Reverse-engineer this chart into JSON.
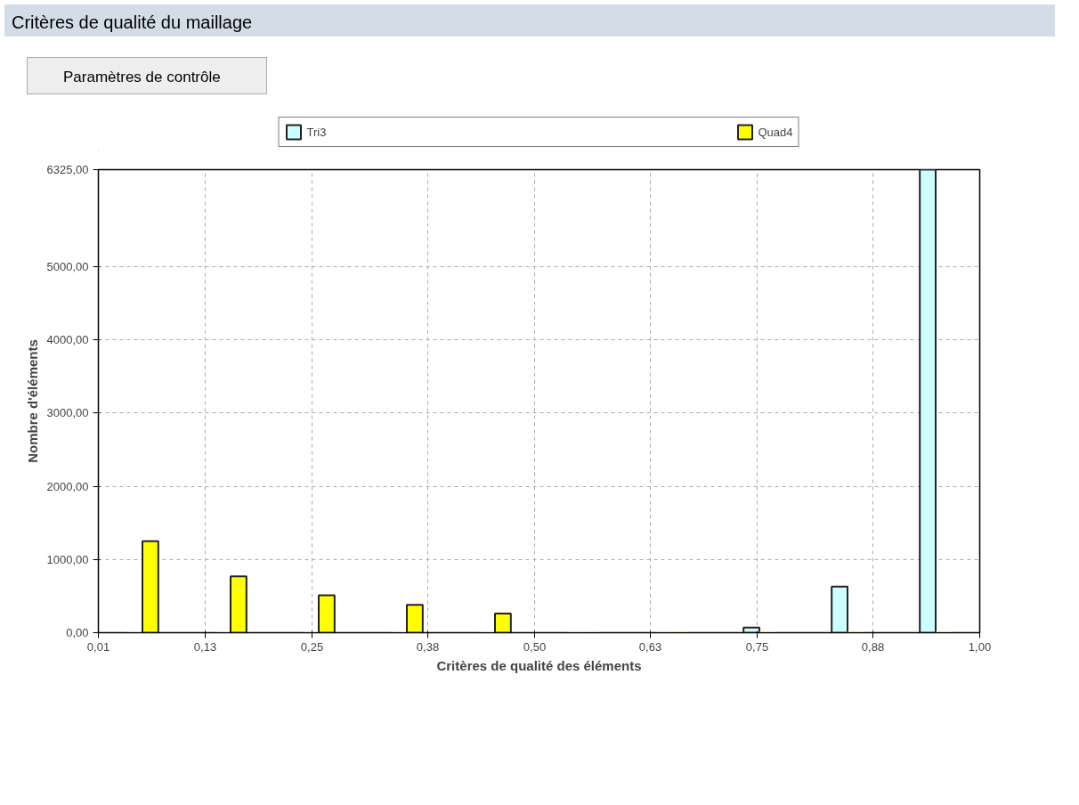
{
  "chart_data": {
    "type": "bar",
    "title": "Critères de qualité du maillage",
    "annotations": [
      "Paramètres de contrôle"
    ],
    "xlabel": "Critères de qualité des éléments",
    "ylabel": "Nombre d'éléments",
    "x": [
      0.0595,
      0.1585,
      0.2575,
      0.3565,
      0.4555,
      0.5545,
      0.6535,
      0.7525,
      0.8515,
      0.9505
    ],
    "series": [
      {
        "name": "Tri3",
        "color": "#ccffff",
        "values": [
          0,
          0,
          0,
          0,
          0,
          0,
          0,
          70,
          630,
          6325
        ]
      },
      {
        "name": "Quad4",
        "color": "#ffff00",
        "values": [
          1250,
          770,
          510,
          380,
          260,
          0,
          0,
          0,
          0,
          0
        ]
      }
    ],
    "xlim": [
      0.01,
      1.0
    ],
    "xticks": [
      {
        "value": 0.01,
        "label": "0,01"
      },
      {
        "value": 0.13,
        "label": "0,13"
      },
      {
        "value": 0.25,
        "label": "0,25"
      },
      {
        "value": 0.38,
        "label": "0,38"
      },
      {
        "value": 0.5,
        "label": "0,50"
      },
      {
        "value": 0.63,
        "label": "0,63"
      },
      {
        "value": 0.75,
        "label": "0,75"
      },
      {
        "value": 0.88,
        "label": "0,88"
      },
      {
        "value": 1.0,
        "label": "1,00"
      }
    ],
    "ylim": [
      0,
      6325
    ],
    "yticks": [
      {
        "value": 0,
        "label": "0,00"
      },
      {
        "value": 1000,
        "label": "1000,00"
      },
      {
        "value": 2000,
        "label": "2000,00"
      },
      {
        "value": 3000,
        "label": "3000,00"
      },
      {
        "value": 4000,
        "label": "4000,00"
      },
      {
        "value": 5000,
        "label": "5000,00"
      },
      {
        "value": 6325,
        "label": "6325,00"
      }
    ],
    "grid": true,
    "legend": "top"
  }
}
